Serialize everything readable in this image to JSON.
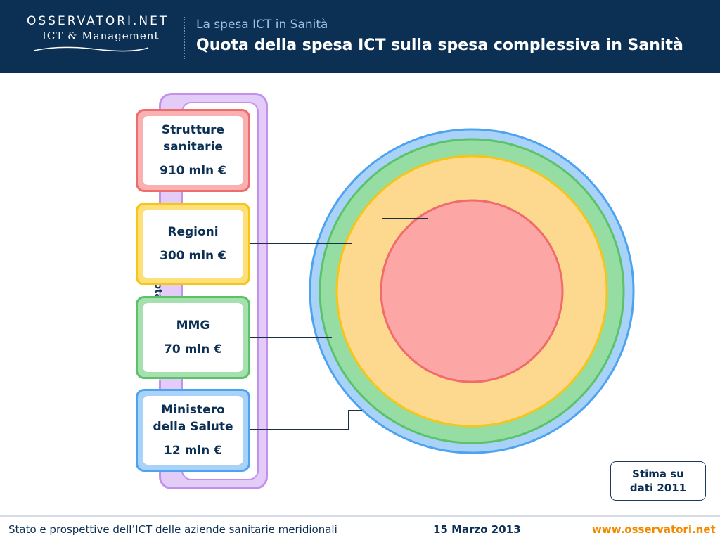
{
  "header": {
    "logo_top": "OSSERVATORI.NET",
    "logo_bottom": "ICT & Management",
    "subtitle": "La spesa ICT in Sanità",
    "title": "Quota della spesa ICT sulla spesa complessiva in Sanità"
  },
  "bracket_label": "Totale spesa ICT",
  "boxes": [
    {
      "name": "Strutture sanitarie",
      "line1": "Strutture",
      "line2": "sanitarie",
      "value": "910 mln €",
      "color": "#f06b6b",
      "fill": "#f8b0b0"
    },
    {
      "name": "Regioni",
      "line1": "Regioni",
      "line2": "",
      "value": "300 mln €",
      "color": "#f5c518",
      "fill": "#fde07a"
    },
    {
      "name": "MMG",
      "line1": "MMG",
      "line2": "",
      "value": "70 mln €",
      "color": "#5cc26a",
      "fill": "#a6e0ae"
    },
    {
      "name": "Ministero della Salute",
      "line1": "Ministero",
      "line2": "della Salute",
      "value": "12 mln €",
      "color": "#4da3f0",
      "fill": "#a8d2f7"
    }
  ],
  "rings": [
    {
      "name": "Ministero della Salute",
      "color": "#4da3f0",
      "fill": "#a8d2f7",
      "value": 12
    },
    {
      "name": "MMG",
      "color": "#5cc26a",
      "fill": "#95dda3",
      "value": 70
    },
    {
      "name": "Regioni",
      "color": "#f5c518",
      "fill": "#fdd98f",
      "value": 300
    },
    {
      "name": "Strutture sanitarie",
      "color": "#f06b6b",
      "fill": "#fca6a6",
      "value": 910
    }
  ],
  "stima": {
    "line1": "Stima su",
    "line2": "dati 2011"
  },
  "footer": {
    "left": "Stato e prospettive dell’ICT delle aziende sanitarie meridionali",
    "date": "15 Marzo 2013",
    "url": "www.osservatori.net"
  }
}
